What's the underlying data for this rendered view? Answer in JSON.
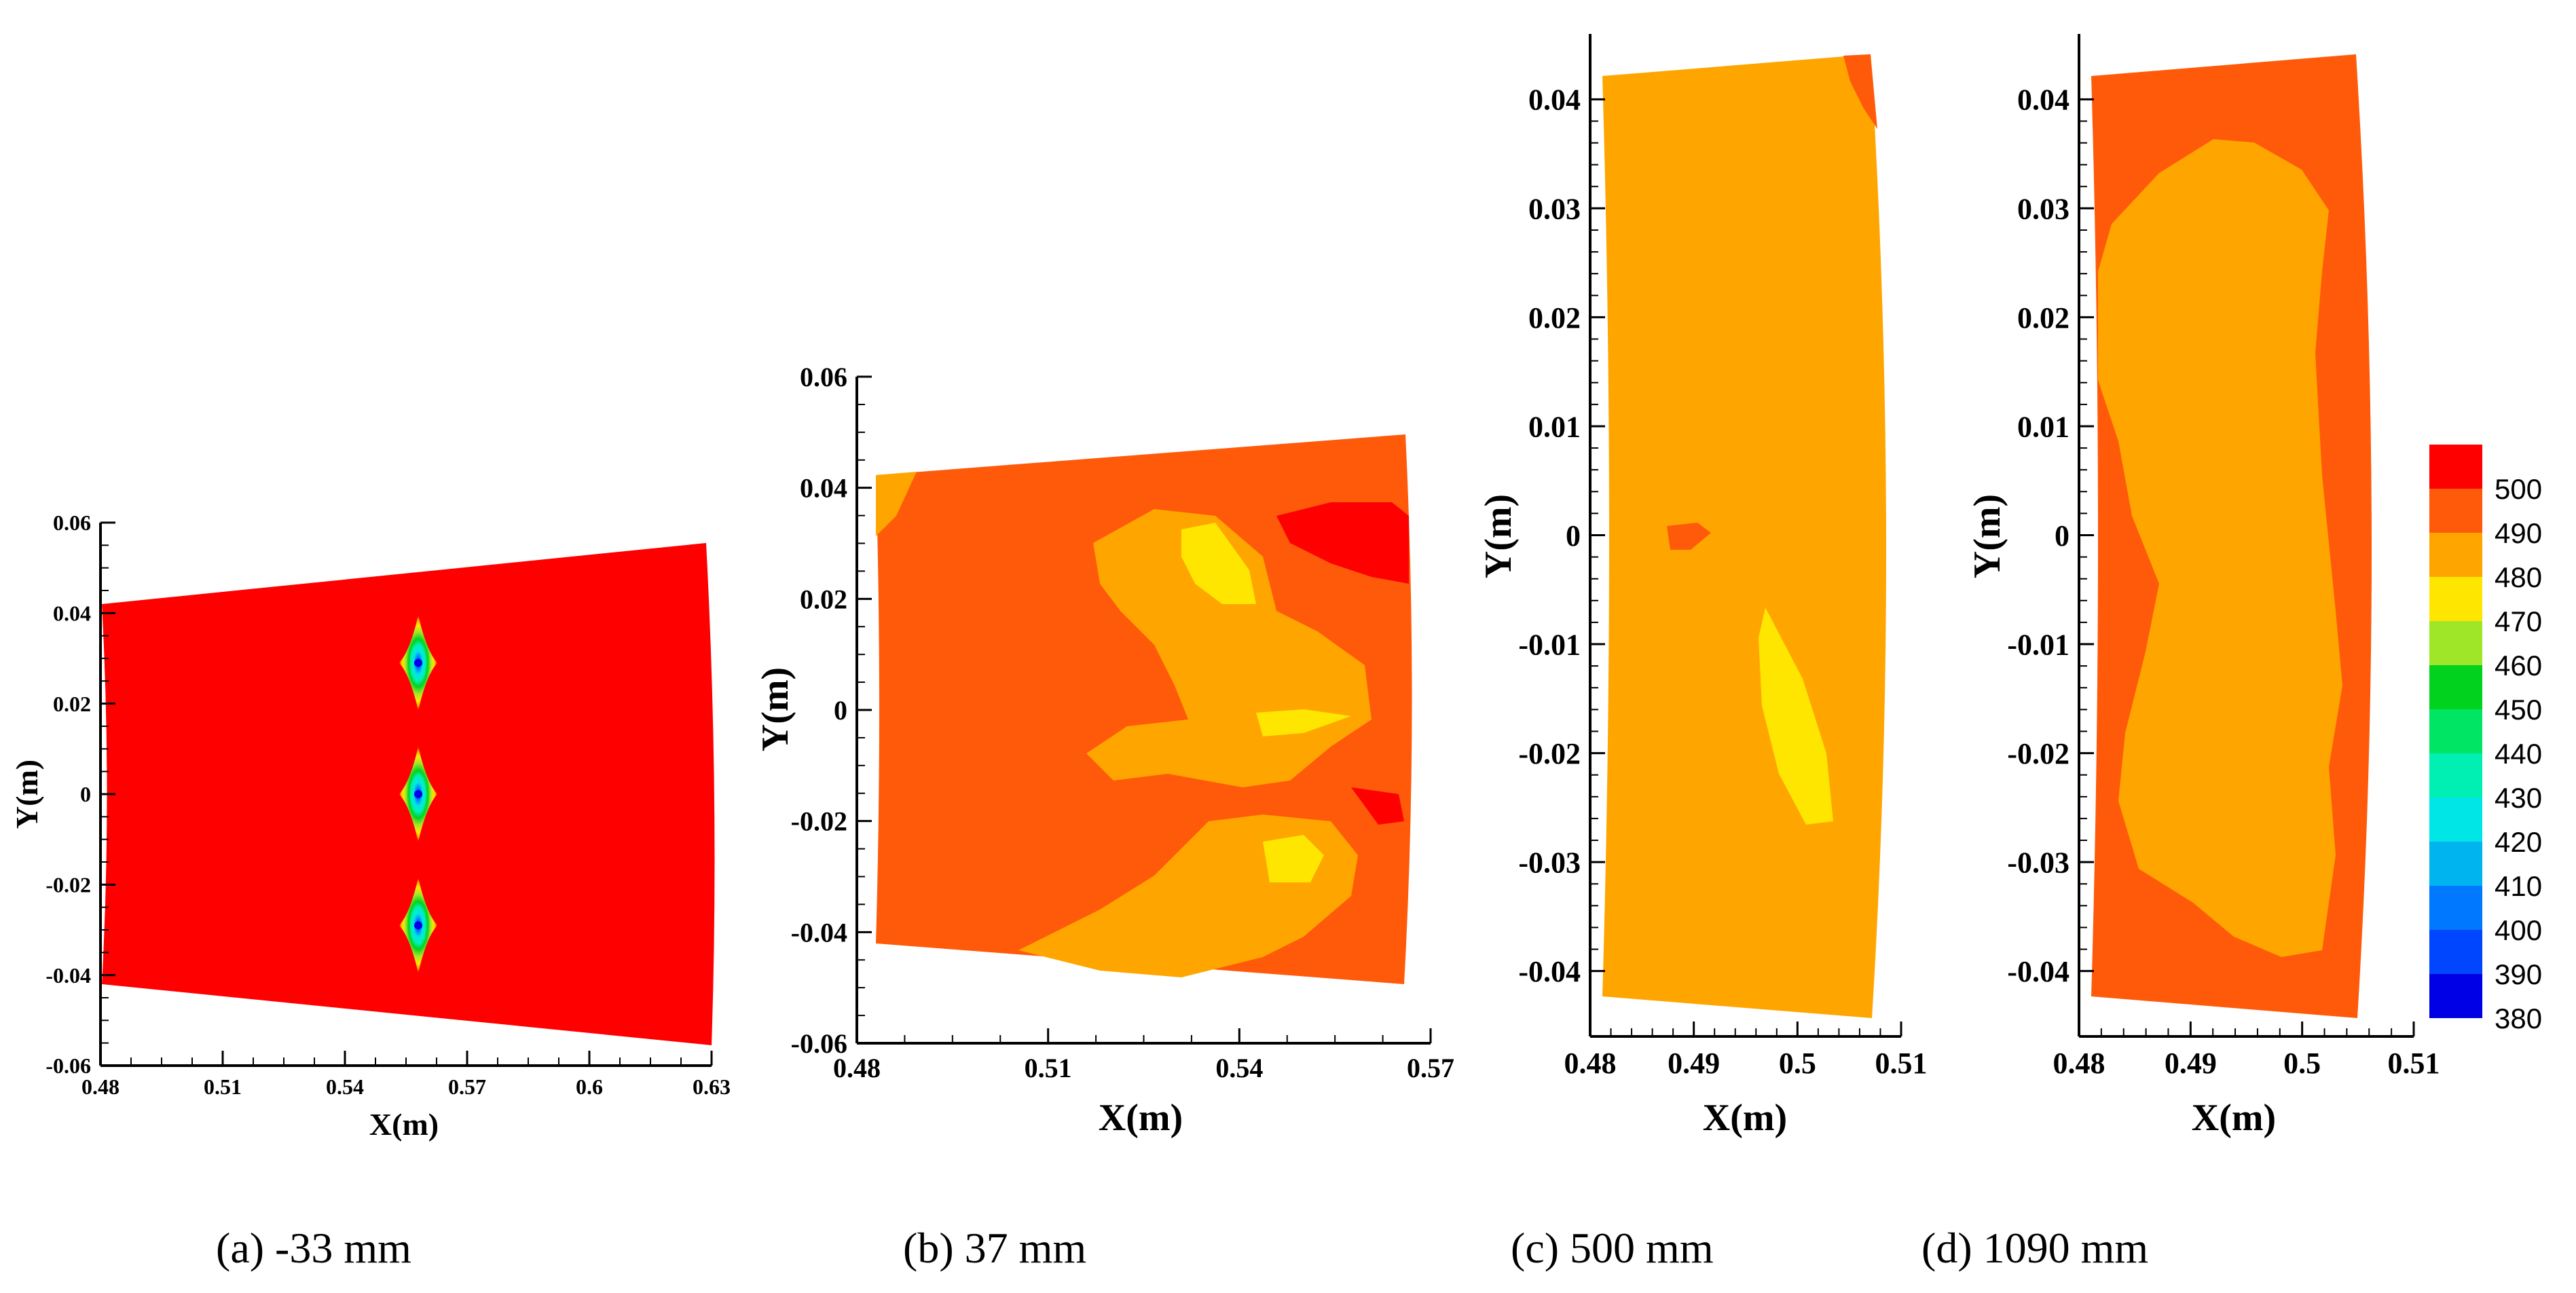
{
  "chart_data": [
    {
      "type": "heatmap",
      "panel": "a",
      "caption": "(a) -33 mm",
      "xlabel": "X(m)",
      "ylabel": "Y(m)",
      "xlim": [
        0.48,
        0.63
      ],
      "ylim": [
        -0.06,
        0.06
      ],
      "xticks": [
        "0.48",
        "0.51",
        "0.54",
        "0.57",
        "0.6",
        "0.63"
      ],
      "yticks": [
        "0.06",
        "0.04",
        "0.02",
        "0",
        "-0.02",
        "-0.04",
        "-0.06"
      ],
      "background_level": 500,
      "hotspots": [
        {
          "x": 0.558,
          "y": 0.029,
          "min_value": 380
        },
        {
          "x": 0.558,
          "y": 0.0,
          "min_value": 380
        },
        {
          "x": 0.558,
          "y": -0.029,
          "min_value": 380
        }
      ]
    },
    {
      "type": "heatmap",
      "panel": "b",
      "caption": "(b) 37 mm",
      "xlabel": "X(m)",
      "ylabel": "Y(m)",
      "xlim": [
        0.48,
        0.57
      ],
      "ylim": [
        -0.06,
        0.06
      ],
      "xticks": [
        "0.48",
        "0.51",
        "0.54",
        "0.57"
      ],
      "yticks": [
        "0.06",
        "0.04",
        "0.02",
        "0",
        "-0.02",
        "-0.04",
        "-0.06"
      ],
      "background_level": 495
    },
    {
      "type": "heatmap",
      "panel": "c",
      "caption": "(c) 500 mm",
      "xlabel": "X(m)",
      "ylabel": "Y(m)",
      "xlim": [
        0.48,
        0.51
      ],
      "ylim": [
        -0.046,
        0.046
      ],
      "xticks": [
        "0.48",
        "0.49",
        "0.5",
        "0.51"
      ],
      "yticks": [
        "0.04",
        "0.03",
        "0.02",
        "0.01",
        "0",
        "-0.01",
        "-0.02",
        "-0.03",
        "-0.04"
      ],
      "background_level": 485
    },
    {
      "type": "heatmap",
      "panel": "d",
      "caption": "(d) 1090 mm",
      "xlabel": "X(m)",
      "ylabel": "Y(m)",
      "xlim": [
        0.48,
        0.51
      ],
      "ylim": [
        -0.046,
        0.046
      ],
      "xticks": [
        "0.48",
        "0.49",
        "0.5",
        "0.51"
      ],
      "yticks": [
        "0.04",
        "0.03",
        "0.02",
        "0.01",
        "0",
        "-0.01",
        "-0.02",
        "-0.03",
        "-0.04"
      ],
      "background_level": 495
    }
  ],
  "legend": {
    "levels": [
      "500",
      "490",
      "480",
      "470",
      "460",
      "450",
      "440",
      "430",
      "420",
      "410",
      "400",
      "390",
      "380"
    ],
    "colors": [
      "#ff0000",
      "#ff5a0a",
      "#ffa500",
      "#ffe600",
      "#a0e628",
      "#00d21e",
      "#00e664",
      "#00f0b4",
      "#00e6e6",
      "#00b4f0",
      "#0078ff",
      "#0046ff",
      "#0000e6"
    ]
  }
}
